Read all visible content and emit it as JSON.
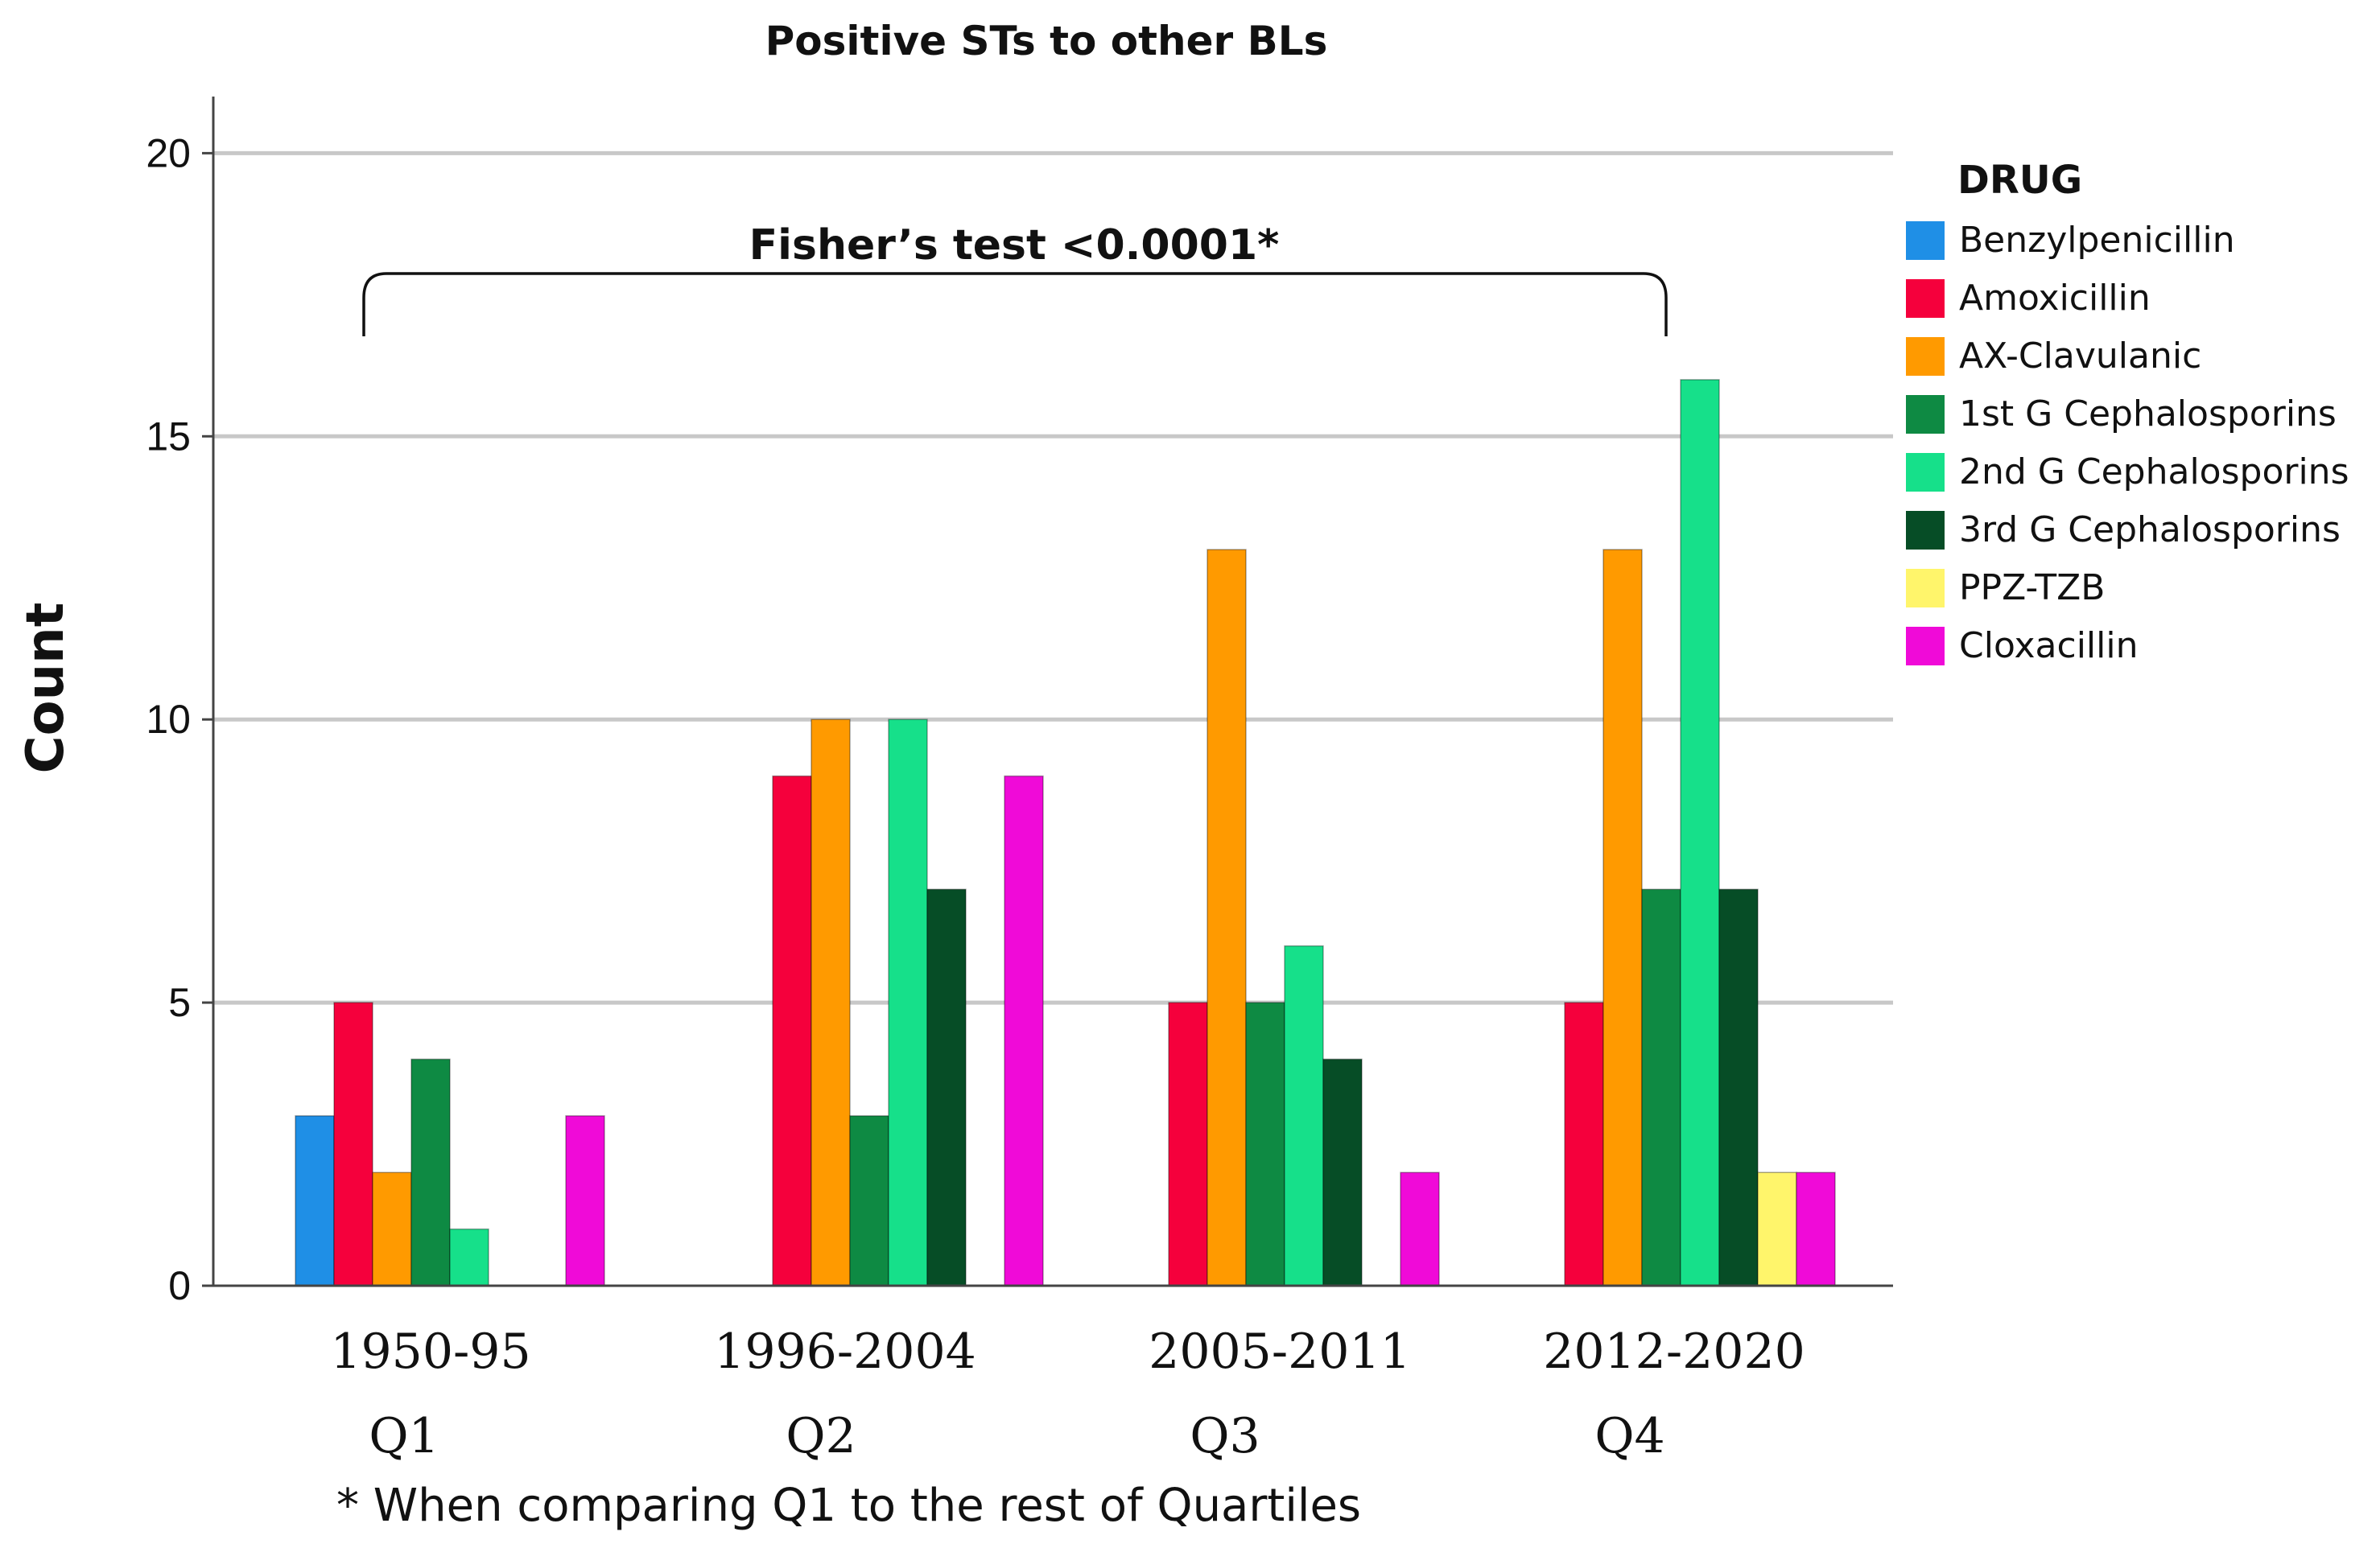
{
  "chart_data": {
    "type": "bar",
    "title": "Positive STs to other BLs",
    "ylabel": "Count",
    "xlabel": "",
    "ylim": [
      0,
      21
    ],
    "yticks": [
      0,
      5,
      10,
      15,
      20
    ],
    "grid": true,
    "categories": [
      "1950-95",
      "1996-2004",
      "2005-2011",
      "2012-2020"
    ],
    "quartile_labels": [
      "Q1",
      "Q2",
      "Q3",
      "Q4"
    ],
    "legend_title": "DRUG",
    "legend_position": "right",
    "series": [
      {
        "name": "Benzylpenicillin",
        "color": "#1f8fe6",
        "values": [
          3,
          0,
          0,
          0
        ]
      },
      {
        "name": "Amoxicillin",
        "color": "#f5003c",
        "values": [
          5,
          9,
          5,
          5
        ]
      },
      {
        "name": "AX-Clavulanic",
        "color": "#ff9a00",
        "values": [
          2,
          10,
          13,
          13
        ]
      },
      {
        "name": "1st G Cephalosporins",
        "color": "#0e8a43",
        "values": [
          4,
          3,
          5,
          7
        ]
      },
      {
        "name": "2nd G Cephalosporins",
        "color": "#16e08a",
        "values": [
          1,
          10,
          6,
          16
        ]
      },
      {
        "name": "3rd G Cephalosporins",
        "color": "#064d26",
        "values": [
          0,
          7,
          4,
          7
        ]
      },
      {
        "name": "PPZ-TZB",
        "color": "#fff56b",
        "values": [
          0,
          0,
          0,
          2
        ]
      },
      {
        "name": "Cloxacillin",
        "color": "#f00ad8",
        "values": [
          3,
          9,
          2,
          2
        ]
      }
    ],
    "annotation": "Fisher’s test <0.0001*",
    "footnote": "* When comparing Q1 to the rest of Quartiles"
  }
}
